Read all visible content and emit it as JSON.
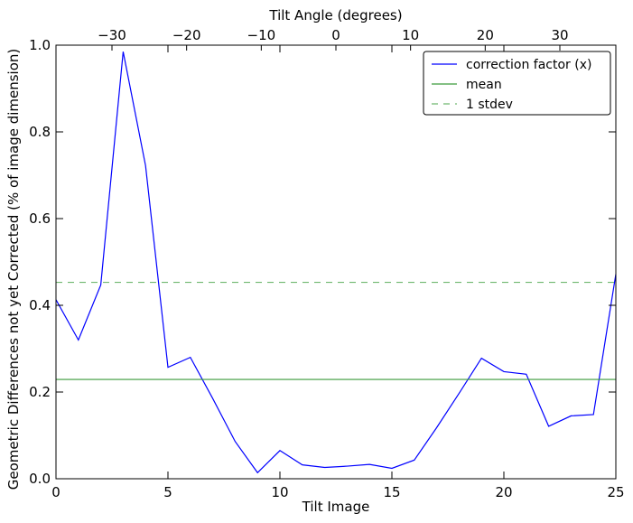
{
  "chart_data": {
    "type": "line",
    "xlabel": "Tilt Image",
    "x2label": "Tilt Angle (degrees)",
    "ylabel": "Geometric Differences not yet Corrected (% of image dimension)",
    "xlim": [
      0,
      25
    ],
    "ylim": [
      0,
      1.0
    ],
    "x2lim": [
      -37.5,
      37.5
    ],
    "x_ticks": [
      0,
      5,
      10,
      15,
      20,
      25
    ],
    "x_tick_labels": [
      "0",
      "5",
      "10",
      "15",
      "20",
      "25"
    ],
    "y_ticks": [
      0.0,
      0.2,
      0.4,
      0.6,
      0.8,
      1.0
    ],
    "y_tick_labels": [
      "0.0",
      "0.2",
      "0.4",
      "0.6",
      "0.8",
      "1.0"
    ],
    "x2_ticks": [
      -30,
      -20,
      -10,
      0,
      10,
      20,
      30
    ],
    "x2_tick_labels": [
      "−30",
      "−20",
      "−10",
      "0",
      "10",
      "20",
      "30"
    ],
    "grid": false,
    "legend_position": "top-right",
    "series": [
      {
        "name": "correction factor (x)",
        "color": "#0000ff",
        "style": "solid",
        "x": [
          0,
          1,
          2,
          3,
          4,
          5,
          6,
          7,
          8,
          9,
          10,
          11,
          12,
          13,
          14,
          15,
          16,
          17,
          18,
          19,
          20,
          21,
          22,
          23,
          24,
          25
        ],
        "values": [
          0.413,
          0.32,
          0.447,
          0.985,
          0.722,
          0.257,
          0.28,
          0.185,
          0.086,
          0.014,
          0.065,
          0.032,
          0.026,
          0.029,
          0.033,
          0.024,
          0.043,
          0.118,
          0.197,
          0.278,
          0.247,
          0.241,
          0.121,
          0.145,
          0.148,
          0.472
        ]
      },
      {
        "name": "mean",
        "color": "#3a9a3a",
        "style": "solid",
        "x": [
          0,
          25
        ],
        "values": [
          0.229,
          0.229
        ]
      },
      {
        "name": "1 stdev",
        "color": "#6fb86f",
        "style": "dashed",
        "x": [
          0,
          25
        ],
        "values": [
          0.453,
          0.453
        ]
      }
    ]
  }
}
